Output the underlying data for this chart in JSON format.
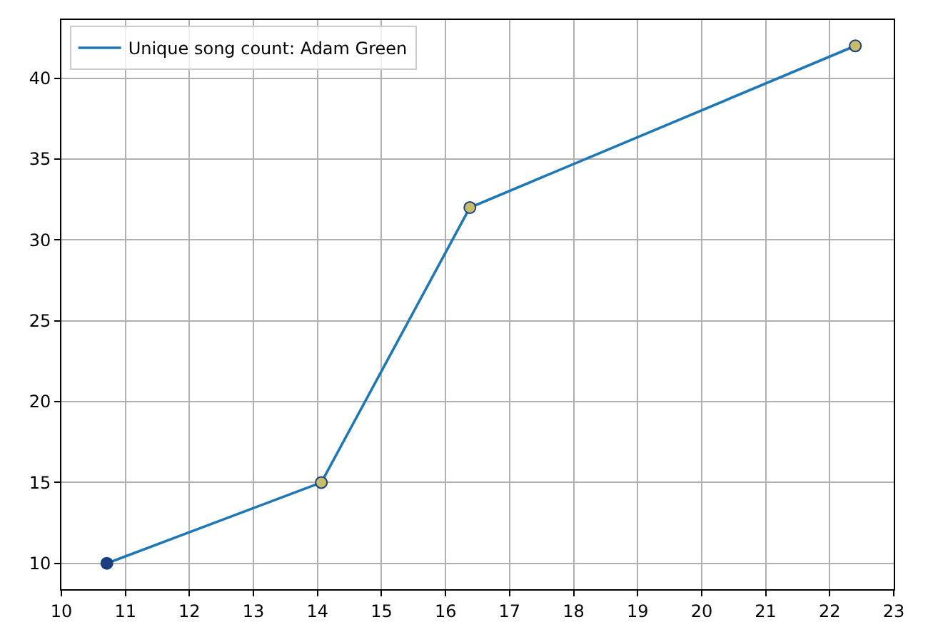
{
  "chart_data": {
    "type": "line",
    "x": [
      10.71,
      14.06,
      16.38,
      22.4
    ],
    "series": [
      {
        "name": "Unique song count: Adam Green",
        "color": "#1f77b4",
        "values": [
          10,
          15,
          32,
          42
        ],
        "colors": [
          "#1a3f80",
          "#c8bd6a",
          "#c8bd6a",
          "#c8bd6a"
        ]
      }
    ],
    "xlim": [
      10,
      23
    ],
    "xticks": [
      10,
      11,
      12,
      13,
      14,
      15,
      16,
      17,
      18,
      19,
      20,
      21,
      22,
      23
    ],
    "ylim": [
      8.4,
      43.6
    ],
    "yticks": [
      10,
      15,
      20,
      25,
      30,
      35,
      40
    ],
    "grid": true,
    "legend": "top left",
    "marker": "circle",
    "line_style": "solid"
  }
}
